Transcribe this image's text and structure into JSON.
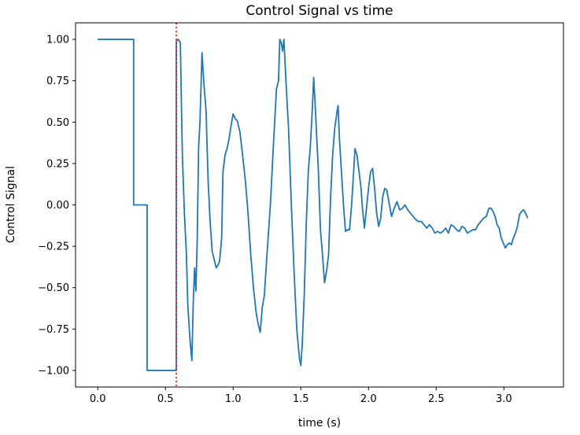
{
  "chart_data": {
    "type": "line",
    "title": "Control Signal vs time",
    "xlabel": "time (s)",
    "ylabel": "Control Signal",
    "xlim": [
      -0.164,
      3.44
    ],
    "ylim": [
      -1.1,
      1.1
    ],
    "grid": false,
    "x_ticks": [
      0.0,
      0.5,
      1.0,
      1.5,
      2.0,
      2.5,
      3.0
    ],
    "x_tick_labels": [
      "0.0",
      "0.5",
      "1.0",
      "1.5",
      "2.0",
      "2.5",
      "3.0"
    ],
    "y_ticks": [
      1.0,
      0.75,
      0.5,
      0.25,
      0.0,
      -0.25,
      -0.5,
      -0.75,
      -1.0
    ],
    "y_tick_labels": [
      "1.00",
      "0.75",
      "0.50",
      "0.25",
      "0.00",
      "−0.25",
      "−0.50",
      "−0.75",
      "−1.00"
    ],
    "series": [
      {
        "color": "#1f77b4",
        "points": [
          [
            0.0,
            1.0
          ],
          [
            0.265,
            1.0
          ],
          [
            0.265,
            0.0
          ],
          [
            0.365,
            0.0
          ],
          [
            0.365,
            -1.0
          ],
          [
            0.58,
            -1.0
          ],
          [
            0.58,
            0.99
          ],
          [
            0.595,
            1.0
          ],
          [
            0.61,
            0.98
          ],
          [
            0.625,
            0.3
          ],
          [
            0.64,
            -0.05
          ],
          [
            0.655,
            -0.3
          ],
          [
            0.665,
            -0.6
          ],
          [
            0.68,
            -0.8
          ],
          [
            0.695,
            -0.94
          ],
          [
            0.705,
            -0.6
          ],
          [
            0.715,
            -0.38
          ],
          [
            0.725,
            -0.52
          ],
          [
            0.735,
            -0.2
          ],
          [
            0.745,
            0.35
          ],
          [
            0.755,
            0.5
          ],
          [
            0.77,
            0.92
          ],
          [
            0.785,
            0.72
          ],
          [
            0.8,
            0.57
          ],
          [
            0.815,
            0.15
          ],
          [
            0.83,
            -0.1
          ],
          [
            0.845,
            -0.28
          ],
          [
            0.86,
            -0.33
          ],
          [
            0.875,
            -0.38
          ],
          [
            0.89,
            -0.36
          ],
          [
            0.9,
            -0.34
          ],
          [
            0.915,
            -0.2
          ],
          [
            0.925,
            0.2
          ],
          [
            0.94,
            0.3
          ],
          [
            0.955,
            0.34
          ],
          [
            0.97,
            0.4
          ],
          [
            0.985,
            0.48
          ],
          [
            1.0,
            0.55
          ],
          [
            1.015,
            0.52
          ],
          [
            1.03,
            0.51
          ],
          [
            1.05,
            0.44
          ],
          [
            1.07,
            0.3
          ],
          [
            1.09,
            0.15
          ],
          [
            1.11,
            -0.05
          ],
          [
            1.13,
            -0.3
          ],
          [
            1.15,
            -0.5
          ],
          [
            1.17,
            -0.65
          ],
          [
            1.185,
            -0.72
          ],
          [
            1.2,
            -0.77
          ],
          [
            1.215,
            -0.62
          ],
          [
            1.23,
            -0.55
          ],
          [
            1.25,
            -0.3
          ],
          [
            1.275,
            0.0
          ],
          [
            1.3,
            0.4
          ],
          [
            1.32,
            0.7
          ],
          [
            1.335,
            0.75
          ],
          [
            1.345,
            1.0
          ],
          [
            1.355,
            0.98
          ],
          [
            1.365,
            0.93
          ],
          [
            1.375,
            1.0
          ],
          [
            1.39,
            0.75
          ],
          [
            1.41,
            0.45
          ],
          [
            1.43,
            0.0
          ],
          [
            1.45,
            -0.4
          ],
          [
            1.47,
            -0.75
          ],
          [
            1.49,
            -0.93
          ],
          [
            1.5,
            -0.97
          ],
          [
            1.51,
            -0.85
          ],
          [
            1.525,
            -0.55
          ],
          [
            1.54,
            -0.12
          ],
          [
            1.555,
            0.2
          ],
          [
            1.57,
            0.35
          ],
          [
            1.585,
            0.58
          ],
          [
            1.595,
            0.77
          ],
          [
            1.605,
            0.62
          ],
          [
            1.615,
            0.45
          ],
          [
            1.63,
            0.2
          ],
          [
            1.645,
            -0.15
          ],
          [
            1.66,
            -0.3
          ],
          [
            1.675,
            -0.47
          ],
          [
            1.69,
            -0.4
          ],
          [
            1.705,
            -0.3
          ],
          [
            1.72,
            0.05
          ],
          [
            1.735,
            0.3
          ],
          [
            1.75,
            0.46
          ],
          [
            1.765,
            0.55
          ],
          [
            1.775,
            0.6
          ],
          [
            1.785,
            0.4
          ],
          [
            1.8,
            0.2
          ],
          [
            1.815,
            0.0
          ],
          [
            1.83,
            -0.16
          ],
          [
            1.845,
            -0.15
          ],
          [
            1.86,
            -0.15
          ],
          [
            1.875,
            0.0
          ],
          [
            1.89,
            0.2
          ],
          [
            1.9,
            0.34
          ],
          [
            1.915,
            0.3
          ],
          [
            1.93,
            0.2
          ],
          [
            1.945,
            0.1
          ],
          [
            1.955,
            -0.02
          ],
          [
            1.97,
            -0.14
          ],
          [
            1.985,
            -0.02
          ],
          [
            2.0,
            0.1
          ],
          [
            2.015,
            0.2
          ],
          [
            2.03,
            0.22
          ],
          [
            2.045,
            0.1
          ],
          [
            2.06,
            -0.05
          ],
          [
            2.075,
            -0.13
          ],
          [
            2.09,
            -0.08
          ],
          [
            2.105,
            0.05
          ],
          [
            2.12,
            0.1
          ],
          [
            2.135,
            0.09
          ],
          [
            2.15,
            0.02
          ],
          [
            2.17,
            -0.07
          ],
          [
            2.19,
            -0.02
          ],
          [
            2.21,
            0.02
          ],
          [
            2.23,
            -0.03
          ],
          [
            2.25,
            -0.02
          ],
          [
            2.27,
            0.0
          ],
          [
            2.29,
            -0.03
          ],
          [
            2.31,
            -0.05
          ],
          [
            2.33,
            -0.07
          ],
          [
            2.35,
            -0.09
          ],
          [
            2.37,
            -0.1
          ],
          [
            2.39,
            -0.1
          ],
          [
            2.41,
            -0.12
          ],
          [
            2.43,
            -0.14
          ],
          [
            2.45,
            -0.12
          ],
          [
            2.47,
            -0.14
          ],
          [
            2.49,
            -0.17
          ],
          [
            2.51,
            -0.16
          ],
          [
            2.53,
            -0.17
          ],
          [
            2.55,
            -0.16
          ],
          [
            2.57,
            -0.14
          ],
          [
            2.59,
            -0.17
          ],
          [
            2.61,
            -0.12
          ],
          [
            2.63,
            -0.13
          ],
          [
            2.65,
            -0.15
          ],
          [
            2.67,
            -0.16
          ],
          [
            2.69,
            -0.13
          ],
          [
            2.71,
            -0.14
          ],
          [
            2.73,
            -0.17
          ],
          [
            2.75,
            -0.16
          ],
          [
            2.77,
            -0.15
          ],
          [
            2.79,
            -0.15
          ],
          [
            2.81,
            -0.12
          ],
          [
            2.83,
            -0.1
          ],
          [
            2.85,
            -0.08
          ],
          [
            2.87,
            -0.07
          ],
          [
            2.89,
            -0.02
          ],
          [
            2.905,
            -0.02
          ],
          [
            2.92,
            -0.04
          ],
          [
            2.935,
            -0.07
          ],
          [
            2.95,
            -0.12
          ],
          [
            2.965,
            -0.14
          ],
          [
            2.98,
            -0.2
          ],
          [
            2.995,
            -0.23
          ],
          [
            3.01,
            -0.26
          ],
          [
            3.025,
            -0.24
          ],
          [
            3.04,
            -0.23
          ],
          [
            3.055,
            -0.24
          ],
          [
            3.07,
            -0.2
          ],
          [
            3.085,
            -0.17
          ],
          [
            3.1,
            -0.13
          ],
          [
            3.115,
            -0.06
          ],
          [
            3.13,
            -0.04
          ],
          [
            3.145,
            -0.03
          ],
          [
            3.16,
            -0.05
          ],
          [
            3.175,
            -0.08
          ]
        ]
      }
    ],
    "annotations": [
      {
        "type": "vline",
        "x": 0.58,
        "color": "#ff0000",
        "style": "dotted"
      }
    ]
  }
}
